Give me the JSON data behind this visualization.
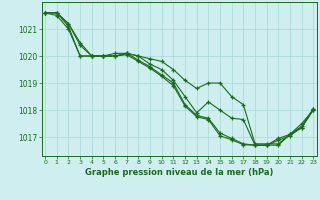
{
  "title": "Graphe pression niveau de la mer (hPa)",
  "background_color": "#ceeef0",
  "grid_color": "#a8d8d8",
  "line_color": "#1a6b1a",
  "x_ticks": [
    0,
    1,
    2,
    3,
    4,
    5,
    6,
    7,
    8,
    9,
    10,
    11,
    12,
    13,
    14,
    15,
    16,
    17,
    18,
    19,
    20,
    21,
    22,
    23
  ],
  "y_ticks": [
    1017,
    1018,
    1019,
    1020,
    1021
  ],
  "ylim": [
    1016.3,
    1022.0
  ],
  "xlim": [
    -0.3,
    23.3
  ],
  "s1": [
    1021.6,
    1021.6,
    1021.2,
    1020.5,
    1020.0,
    1020.0,
    1020.1,
    1020.1,
    1020.0,
    1019.9,
    1019.8,
    1019.5,
    1019.1,
    1018.8,
    1019.0,
    1019.0,
    1018.5,
    1018.2,
    1016.75,
    1016.75,
    1016.75,
    1017.1,
    1017.5,
    1018.0
  ],
  "s2": [
    1021.6,
    1021.6,
    1021.1,
    1020.0,
    1020.0,
    1020.0,
    1020.0,
    1020.1,
    1020.0,
    1019.7,
    1019.5,
    1019.1,
    1018.5,
    1017.9,
    1018.3,
    1018.0,
    1017.7,
    1017.65,
    1016.7,
    1016.7,
    1016.7,
    1017.1,
    1017.35,
    1018.0
  ],
  "s3": [
    1021.6,
    1021.6,
    1021.2,
    1020.4,
    1020.0,
    1020.0,
    1020.0,
    1020.1,
    1019.85,
    1019.6,
    1019.3,
    1019.0,
    1018.2,
    1017.8,
    1017.7,
    1017.15,
    1016.95,
    1016.75,
    1016.7,
    1016.7,
    1016.95,
    1017.1,
    1017.4,
    1018.05
  ],
  "s4": [
    1021.6,
    1021.5,
    1021.0,
    1020.0,
    1020.0,
    1020.0,
    1020.0,
    1020.05,
    1019.8,
    1019.55,
    1019.25,
    1018.9,
    1018.15,
    1017.75,
    1017.65,
    1017.05,
    1016.9,
    1016.72,
    1016.7,
    1016.7,
    1016.88,
    1017.05,
    1017.35,
    1018.05
  ]
}
